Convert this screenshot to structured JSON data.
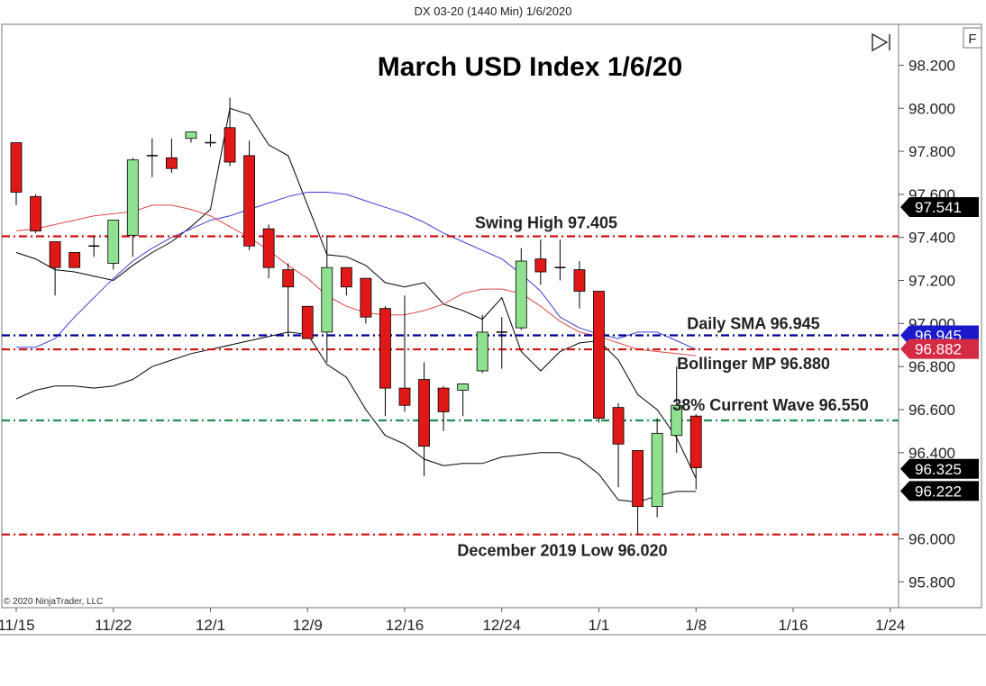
{
  "window_title": "DX 03-20 (1440 Min)  1/6/2020",
  "title": "March USD Index 1/6/20",
  "copyright": "© 2020 NinjaTrader, LLC",
  "f_button": "F",
  "colors": {
    "up": "#8fe08f",
    "down": "#e01818",
    "bb": "#000000",
    "sma_line": "#3d3dd6",
    "mid_line": "#e04848",
    "red_dash": "#d01010",
    "blue_dash": "#000099",
    "green_dash": "#1f8f55"
  },
  "chart_data": {
    "type": "candlestick",
    "title": "March USD Index 1/6/20",
    "ylim": [
      95.68,
      98.39
    ],
    "y_ticks": [
      "98.200",
      "98.000",
      "97.800",
      "97.600",
      "97.400",
      "97.200",
      "97.000",
      "96.800",
      "96.600",
      "96.400",
      "96.000",
      "95.800"
    ],
    "x_ticks": [
      {
        "label": "11/15",
        "idx": 0
      },
      {
        "label": "11/22",
        "idx": 5
      },
      {
        "label": "12/1",
        "idx": 10
      },
      {
        "label": "12/9",
        "idx": 15
      },
      {
        "label": "12/16",
        "idx": 20
      },
      {
        "label": "12/24",
        "idx": 25
      },
      {
        "label": "1/1",
        "idx": 30
      },
      {
        "label": "1/8",
        "idx": 35
      },
      {
        "label": "1/16",
        "idx": 40
      },
      {
        "label": "1/24",
        "idx": 45
      }
    ],
    "candles": [
      {
        "o": 97.84,
        "h": 97.84,
        "l": 97.55,
        "c": 97.61
      },
      {
        "o": 97.59,
        "h": 97.6,
        "l": 97.42,
        "c": 97.43
      },
      {
        "o": 97.38,
        "h": 97.38,
        "l": 97.13,
        "c": 97.26
      },
      {
        "o": 97.33,
        "h": 97.33,
        "l": 97.26,
        "c": 97.26
      },
      {
        "o": 97.36,
        "h": 97.41,
        "l": 97.31,
        "c": 97.36
      },
      {
        "o": 97.28,
        "h": 97.48,
        "l": 97.25,
        "c": 97.48
      },
      {
        "o": 97.41,
        "h": 97.77,
        "l": 97.31,
        "c": 97.76
      },
      {
        "o": 97.78,
        "h": 97.86,
        "l": 97.68,
        "c": 97.78
      },
      {
        "o": 97.77,
        "h": 97.86,
        "l": 97.7,
        "c": 97.72
      },
      {
        "o": 97.86,
        "h": 97.89,
        "l": 97.84,
        "c": 97.89
      },
      {
        "o": 97.84,
        "h": 97.88,
        "l": 97.82,
        "c": 97.84
      },
      {
        "o": 97.91,
        "h": 98.05,
        "l": 97.73,
        "c": 97.75
      },
      {
        "o": 97.78,
        "h": 97.85,
        "l": 97.34,
        "c": 97.36
      },
      {
        "o": 97.44,
        "h": 97.46,
        "l": 97.21,
        "c": 97.26
      },
      {
        "o": 97.25,
        "h": 97.28,
        "l": 96.95,
        "c": 97.17
      },
      {
        "o": 97.08,
        "h": 97.08,
        "l": 96.94,
        "c": 96.93
      },
      {
        "o": 96.96,
        "h": 97.41,
        "l": 96.82,
        "c": 97.26
      },
      {
        "o": 97.26,
        "h": 97.26,
        "l": 97.13,
        "c": 97.17
      },
      {
        "o": 97.21,
        "h": 97.21,
        "l": 97.0,
        "c": 97.03
      },
      {
        "o": 97.07,
        "h": 97.08,
        "l": 96.57,
        "c": 96.7
      },
      {
        "o": 96.7,
        "h": 97.13,
        "l": 96.59,
        "c": 96.62
      },
      {
        "o": 96.74,
        "h": 96.82,
        "l": 96.29,
        "c": 96.43
      },
      {
        "o": 96.7,
        "h": 96.71,
        "l": 96.5,
        "c": 96.59
      },
      {
        "o": 96.69,
        "h": 96.72,
        "l": 96.57,
        "c": 96.72
      },
      {
        "o": 96.78,
        "h": 97.04,
        "l": 96.77,
        "c": 96.96
      },
      {
        "o": 96.96,
        "h": 97.03,
        "l": 96.79,
        "c": 96.96
      },
      {
        "o": 96.98,
        "h": 97.35,
        "l": 96.97,
        "c": 97.29
      },
      {
        "o": 97.3,
        "h": 97.39,
        "l": 97.18,
        "c": 97.24
      },
      {
        "o": 97.26,
        "h": 97.39,
        "l": 97.2,
        "c": 97.26
      },
      {
        "o": 97.25,
        "h": 97.29,
        "l": 97.07,
        "c": 97.15
      },
      {
        "o": 97.15,
        "h": 97.15,
        "l": 96.54,
        "c": 96.56
      },
      {
        "o": 96.61,
        "h": 96.63,
        "l": 96.24,
        "c": 96.44
      },
      {
        "o": 96.41,
        "h": 96.41,
        "l": 96.02,
        "c": 96.15
      },
      {
        "o": 96.15,
        "h": 96.56,
        "l": 96.1,
        "c": 96.49
      },
      {
        "o": 96.48,
        "h": 96.8,
        "l": 96.4,
        "c": 96.62
      },
      {
        "o": 96.57,
        "h": 96.58,
        "l": 96.23,
        "c": 96.33
      }
    ],
    "upper_band": [
      97.33,
      97.3,
      97.25,
      97.24,
      97.22,
      97.2,
      97.27,
      97.33,
      97.38,
      97.45,
      97.53,
      98.0,
      97.97,
      97.83,
      97.78,
      97.55,
      97.32,
      97.31,
      97.27,
      97.19,
      97.17,
      97.19,
      97.09,
      97.06,
      97.02,
      97.12,
      96.87,
      96.78,
      96.87,
      96.91,
      96.92,
      96.83,
      96.67,
      96.6,
      96.47,
      96.28
    ],
    "lower_band": [
      96.65,
      96.69,
      96.71,
      96.71,
      96.7,
      96.71,
      96.74,
      96.8,
      96.83,
      96.86,
      96.88,
      96.9,
      96.92,
      96.94,
      96.96,
      96.95,
      96.81,
      96.75,
      96.6,
      96.48,
      96.44,
      96.37,
      96.34,
      96.35,
      96.35,
      96.38,
      96.39,
      96.4,
      96.4,
      96.37,
      96.3,
      96.18,
      96.17,
      96.2,
      96.22,
      96.22
    ],
    "sma_upper_line": [
      96.89,
      96.89,
      96.93,
      97.03,
      97.12,
      97.21,
      97.29,
      97.35,
      97.4,
      97.44,
      97.48,
      97.5,
      97.53,
      97.56,
      97.59,
      97.61,
      97.61,
      97.6,
      97.57,
      97.54,
      97.51,
      97.47,
      97.42,
      97.38,
      97.34,
      97.3,
      97.23,
      97.15,
      97.03,
      96.98,
      96.95,
      96.93,
      96.96,
      96.96,
      96.92,
      96.88
    ],
    "mid_line": [
      97.43,
      97.44,
      97.46,
      97.48,
      97.5,
      97.51,
      97.52,
      97.55,
      97.55,
      97.53,
      97.5,
      97.45,
      97.4,
      97.34,
      97.27,
      97.21,
      97.13,
      97.08,
      97.05,
      97.04,
      97.04,
      97.06,
      97.09,
      97.14,
      97.16,
      97.16,
      97.14,
      97.08,
      97.01,
      96.96,
      96.94,
      96.91,
      96.88,
      96.87,
      96.86,
      96.85
    ],
    "levels": [
      {
        "name": "swing_high",
        "value": 97.405,
        "color": "#d01010",
        "label": "Swing High 97.405"
      },
      {
        "name": "daily_sma",
        "value": 96.945,
        "color": "#000099",
        "label": "Daily SMA 96.945"
      },
      {
        "name": "bollinger_mp",
        "value": 96.88,
        "color": "#d01010",
        "label": "Bollinger MP 96.880"
      },
      {
        "name": "wave_38",
        "value": 96.55,
        "color": "#1f8f55",
        "label": "38% Current Wave 96.550"
      },
      {
        "name": "dec_low",
        "value": 96.02,
        "color": "#d01010",
        "label": "December 2019 Low 96.020"
      }
    ],
    "price_badges": [
      {
        "text": "97.541",
        "value": 97.541,
        "color": "#000000"
      },
      {
        "text": "96.945",
        "value": 96.945,
        "color": "#1a1acc"
      },
      {
        "text": "96.882",
        "value": 96.882,
        "color": "#d42a44"
      },
      {
        "text": "96.325",
        "value": 96.325,
        "color": "#000000"
      },
      {
        "text": "96.222",
        "value": 96.222,
        "color": "#000000"
      }
    ]
  }
}
